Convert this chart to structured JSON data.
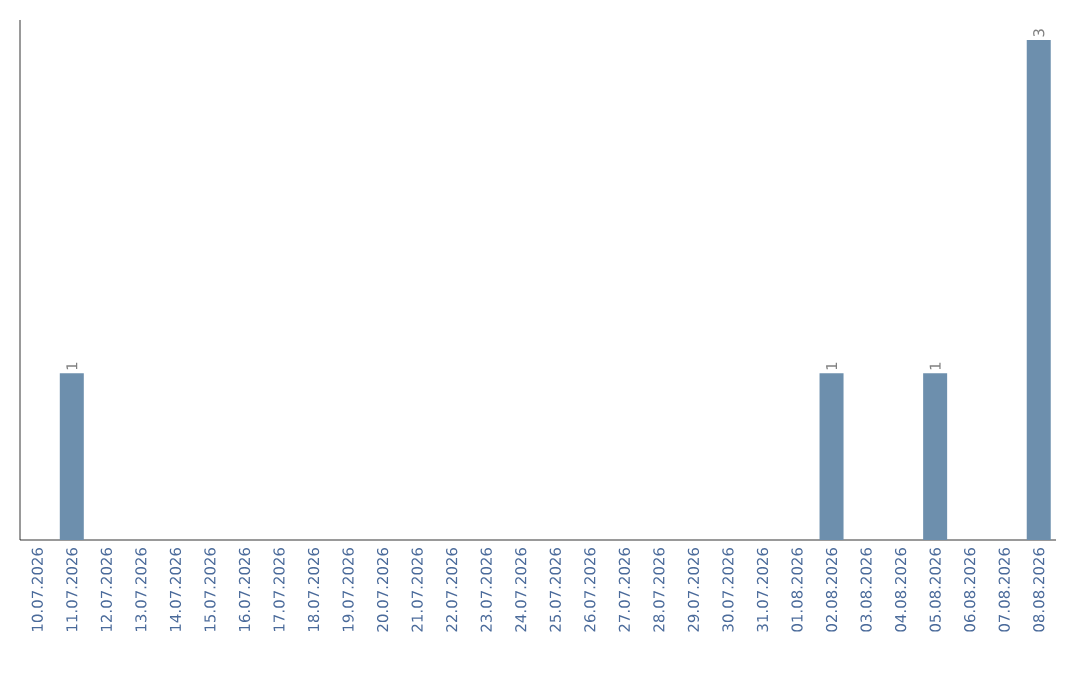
{
  "chart_data": {
    "type": "bar",
    "categories": [
      "10.07.2026",
      "11.07.2026",
      "12.07.2026",
      "13.07.2026",
      "14.07.2026",
      "15.07.2026",
      "16.07.2026",
      "17.07.2026",
      "18.07.2026",
      "19.07.2026",
      "20.07.2026",
      "21.07.2026",
      "22.07.2026",
      "23.07.2026",
      "24.07.2026",
      "25.07.2026",
      "26.07.2026",
      "27.07.2026",
      "28.07.2026",
      "29.07.2026",
      "30.07.2026",
      "31.07.2026",
      "01.08.2026",
      "02.08.2026",
      "03.08.2026",
      "04.08.2026",
      "05.08.2026",
      "06.08.2026",
      "07.08.2026",
      "08.08.2026"
    ],
    "values": [
      0,
      1,
      0,
      0,
      0,
      0,
      0,
      0,
      0,
      0,
      0,
      0,
      0,
      0,
      0,
      0,
      0,
      0,
      0,
      0,
      0,
      0,
      0,
      1,
      0,
      0,
      1,
      0,
      0,
      3
    ],
    "value_labels": [
      null,
      "1",
      null,
      null,
      null,
      null,
      null,
      null,
      null,
      null,
      null,
      null,
      null,
      null,
      null,
      null,
      null,
      null,
      null,
      null,
      null,
      null,
      null,
      "1",
      null,
      null,
      "1",
      null,
      null,
      "3"
    ],
    "color": "#6d8fad",
    "tick_labels": "x"
  }
}
